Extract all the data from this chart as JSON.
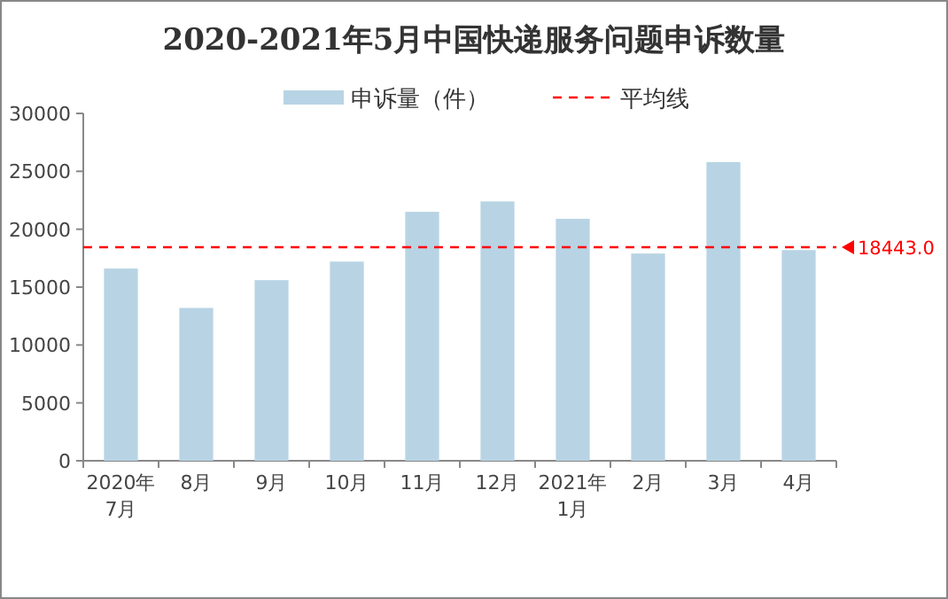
{
  "chart_data": {
    "type": "bar",
    "title": "2020-2021年5月中国快递服务问题申诉数量",
    "categories": [
      "2020年\n7月",
      "8月",
      "9月",
      "10月",
      "11月",
      "12月",
      "2021年\n1月",
      "2月",
      "3月",
      "4月"
    ],
    "series": [
      {
        "name": "申诉量（件）",
        "color": "#b8d4e4",
        "values": [
          16600,
          13200,
          15600,
          17200,
          21500,
          22400,
          20900,
          17900,
          25800,
          18200
        ]
      }
    ],
    "ylim": [
      0,
      30000
    ],
    "yticks": [
      0,
      5000,
      10000,
      15000,
      20000,
      25000,
      30000
    ],
    "ref_lines": [
      {
        "axis": "y",
        "value": 18443,
        "label": "平均线",
        "color": "#ff0000",
        "line_style": "dashed"
      }
    ],
    "annotations": [
      "18443.0"
    ],
    "legend": "top"
  }
}
